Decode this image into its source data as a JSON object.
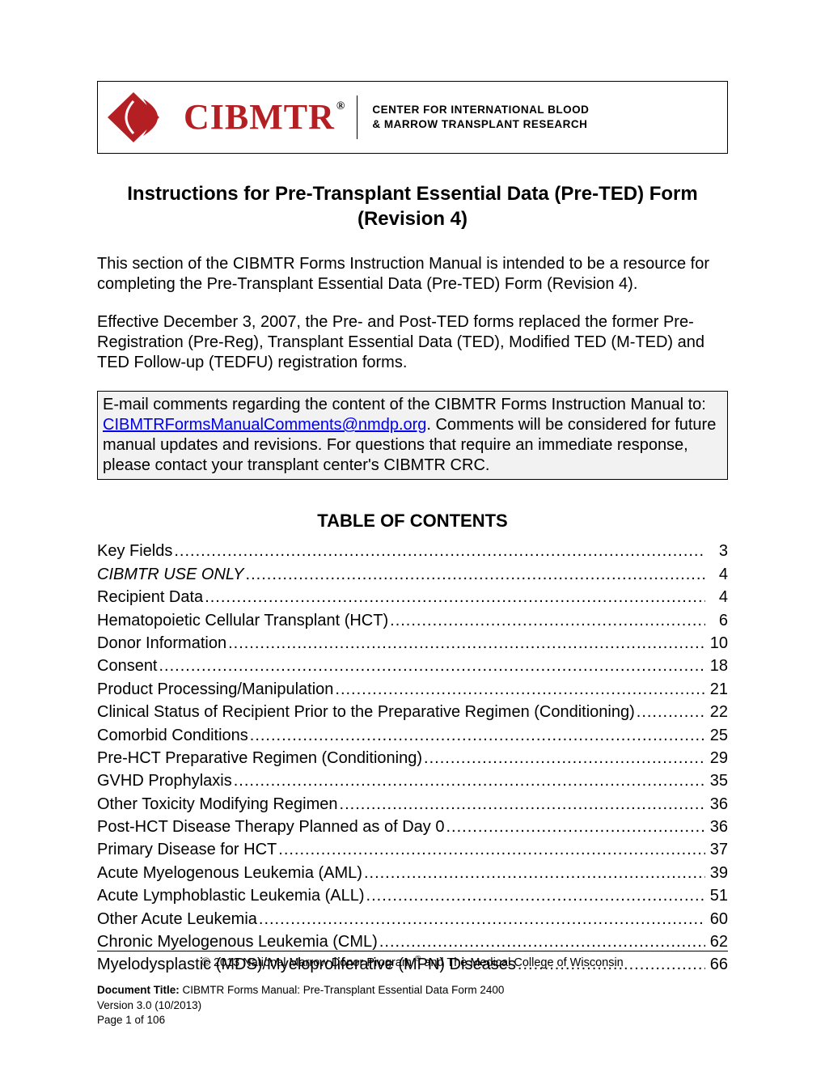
{
  "logo": {
    "acronym": "CIBMTR",
    "registered": "®",
    "tagline_line1": "CENTER FOR INTERNATIONAL BLOOD",
    "tagline_line2": "& MARROW TRANSPLANT RESEARCH",
    "brand_color": "#b41f24"
  },
  "title": "Instructions for Pre-Transplant Essential Data (Pre-TED) Form (Revision 4)",
  "para1": "This section of the CIBMTR Forms Instruction Manual is intended to be a resource for completing the Pre-Transplant Essential Data (Pre-TED) Form (Revision 4).",
  "para2": "Effective December 3, 2007, the Pre- and Post-TED forms replaced the former Pre-Registration (Pre-Reg), Transplant Essential Data (TED), Modified TED (M-TED) and TED Follow-up (TEDFU) registration forms.",
  "comment_box": {
    "before_link": "E-mail comments regarding the content of the CIBMTR Forms Instruction Manual to: ",
    "link_text": "CIBMTRFormsManualComments@nmdp.org",
    "after_link": ". Comments will be considered for future manual updates and revisions. For questions that require an immediate response, please contact your transplant center's CIBMTR CRC."
  },
  "toc_heading": "TABLE OF CONTENTS",
  "toc": [
    {
      "label": "Key Fields",
      "page": "3",
      "italic": false
    },
    {
      "label": "CIBMTR USE ONLY",
      "page": "4",
      "italic": true
    },
    {
      "label": "Recipient Data",
      "page": "4",
      "italic": false
    },
    {
      "label": "Hematopoietic Cellular Transplant (HCT)",
      "page": "6",
      "italic": false
    },
    {
      "label": "Donor Information",
      "page": "10",
      "italic": false
    },
    {
      "label": "Consent",
      "page": "18",
      "italic": false
    },
    {
      "label": "Product Processing/Manipulation ",
      "page": "21",
      "italic": false
    },
    {
      "label": "Clinical Status of Recipient Prior to the Preparative Regimen (Conditioning)",
      "page": "22",
      "italic": false
    },
    {
      "label": "Comorbid Conditions",
      "page": "25",
      "italic": false
    },
    {
      "label": "Pre-HCT Preparative Regimen (Conditioning) ",
      "page": "29",
      "italic": false
    },
    {
      "label": "GVHD Prophylaxis",
      "page": "35",
      "italic": false
    },
    {
      "label": "Other Toxicity Modifying Regimen",
      "page": "36",
      "italic": false
    },
    {
      "label": "Post-HCT Disease Therapy Planned as of Day 0 ",
      "page": "36",
      "italic": false
    },
    {
      "label": "Primary Disease for HCT",
      "page": "37",
      "italic": false
    },
    {
      "label": "Acute Myelogenous Leukemia (AML)",
      "page": "39",
      "italic": false
    },
    {
      "label": "Acute Lymphoblastic Leukemia (ALL) ",
      "page": "51",
      "italic": false
    },
    {
      "label": "Other Acute Leukemia",
      "page": "60",
      "italic": false
    },
    {
      "label": "Chronic Myelogenous Leukemia (CML) ",
      "page": "62",
      "italic": false
    },
    {
      "label": "Myelodysplastic (MDS)/Myeloproliferative (MPN) Diseases",
      "page": "66",
      "italic": false
    }
  ],
  "footer": {
    "copyright": "© 2013 National Marrow Donor Program ",
    "copyright_reg": "®",
    "copyright_after": " and The Medical College of Wisconsin",
    "doc_title_label": "Document Title: ",
    "doc_title_value": "CIBMTR Forms Manual: Pre-Transplant Essential Data Form 2400",
    "version": "Version 3.0 (10/2013)",
    "page": "Page 1 of 106"
  }
}
